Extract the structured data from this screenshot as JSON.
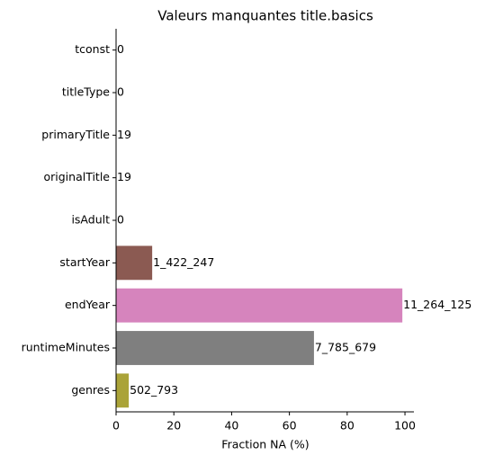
{
  "chart_data": {
    "type": "barh",
    "title": "Valeurs manquantes title.basics",
    "xlabel": "Fraction NA (%)",
    "categories": [
      "tconst",
      "titleType",
      "primaryTitle",
      "originalTitle",
      "isAdult",
      "startYear",
      "endYear",
      "runtimeMinutes",
      "genres"
    ],
    "values": [
      0,
      0,
      0.0002,
      0.0002,
      0,
      12.5,
      99.1,
      68.5,
      4.4
    ],
    "na_counts": [
      "0",
      "0",
      "19",
      "19",
      "0",
      "1_422_247",
      "11_264_125",
      "7_785_679",
      "502_793"
    ],
    "colors": [
      "#3b75af",
      "#ef8636",
      "#519e3e",
      "#c53a32",
      "#8d69b8",
      "#8b5a52",
      "#d684bd",
      "#7f7f7f",
      "#aaa338"
    ],
    "xlim": [
      0,
      103.1
    ],
    "xticks": [
      0,
      20,
      40,
      60,
      80,
      100
    ]
  }
}
